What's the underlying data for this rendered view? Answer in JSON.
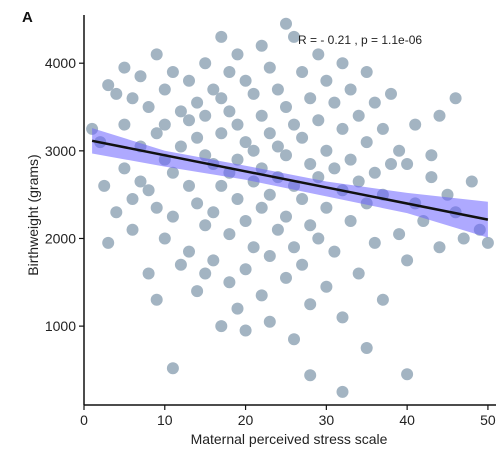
{
  "chart_data": {
    "type": "scatter",
    "panel_label": "A",
    "xlabel": "Maternal perceived stress scale",
    "ylabel": "Birthweight (grams)",
    "annotation": "R = - 0.21 , p = 1.1e-06",
    "xlim": [
      0,
      51
    ],
    "ylim": [
      100,
      4550
    ],
    "x_ticks": [
      0,
      10,
      20,
      30,
      40,
      50
    ],
    "y_ticks": [
      1000,
      2000,
      3000,
      4000
    ],
    "grid": false,
    "colors": {
      "points": "#9eb0bf",
      "fit_line": "#111111",
      "confidence_band": "#6c63ff"
    },
    "regression": {
      "x": [
        1,
        50
      ],
      "y": [
        3115,
        2215
      ]
    },
    "confidence_band": {
      "x": [
        1,
        10,
        20,
        30,
        40,
        50
      ],
      "upper": [
        3260,
        3000,
        2830,
        2650,
        2520,
        2420
      ],
      "lower": [
        2970,
        2820,
        2670,
        2480,
        2290,
        2010
      ]
    },
    "points": [
      {
        "x": 1,
        "y": 3250
      },
      {
        "x": 2,
        "y": 3100
      },
      {
        "x": 2.5,
        "y": 2600
      },
      {
        "x": 3,
        "y": 3750
      },
      {
        "x": 3,
        "y": 1950
      },
      {
        "x": 4,
        "y": 3650
      },
      {
        "x": 4,
        "y": 2300
      },
      {
        "x": 5,
        "y": 3950
      },
      {
        "x": 5,
        "y": 3300
      },
      {
        "x": 5,
        "y": 2800
      },
      {
        "x": 6,
        "y": 3600
      },
      {
        "x": 6,
        "y": 2450
      },
      {
        "x": 6,
        "y": 2100
      },
      {
        "x": 7,
        "y": 3850
      },
      {
        "x": 7,
        "y": 3050
      },
      {
        "x": 7,
        "y": 2650
      },
      {
        "x": 8,
        "y": 3500
      },
      {
        "x": 8,
        "y": 2550
      },
      {
        "x": 8,
        "y": 1600
      },
      {
        "x": 9,
        "y": 4100
      },
      {
        "x": 9,
        "y": 3200
      },
      {
        "x": 9,
        "y": 2350
      },
      {
        "x": 9,
        "y": 1300
      },
      {
        "x": 10,
        "y": 3700
      },
      {
        "x": 10,
        "y": 3300
      },
      {
        "x": 10,
        "y": 2900
      },
      {
        "x": 10,
        "y": 2000
      },
      {
        "x": 11,
        "y": 3900
      },
      {
        "x": 11,
        "y": 2750
      },
      {
        "x": 11,
        "y": 2250
      },
      {
        "x": 11,
        "y": 520
      },
      {
        "x": 12,
        "y": 3450
      },
      {
        "x": 12,
        "y": 3050
      },
      {
        "x": 12,
        "y": 1700
      },
      {
        "x": 13,
        "y": 3800
      },
      {
        "x": 13,
        "y": 3350
      },
      {
        "x": 13,
        "y": 2600
      },
      {
        "x": 13,
        "y": 1850
      },
      {
        "x": 14,
        "y": 3550
      },
      {
        "x": 14,
        "y": 3150
      },
      {
        "x": 14,
        "y": 2400
      },
      {
        "x": 14,
        "y": 1400
      },
      {
        "x": 15,
        "y": 4000
      },
      {
        "x": 15,
        "y": 3400
      },
      {
        "x": 15,
        "y": 2950
      },
      {
        "x": 15,
        "y": 2150
      },
      {
        "x": 15,
        "y": 1600
      },
      {
        "x": 16,
        "y": 3700
      },
      {
        "x": 16,
        "y": 2850
      },
      {
        "x": 16,
        "y": 2300
      },
      {
        "x": 16,
        "y": 1750
      },
      {
        "x": 17,
        "y": 4300
      },
      {
        "x": 17,
        "y": 3600
      },
      {
        "x": 17,
        "y": 3200
      },
      {
        "x": 17,
        "y": 2600
      },
      {
        "x": 17,
        "y": 1000
      },
      {
        "x": 18,
        "y": 3900
      },
      {
        "x": 18,
        "y": 3450
      },
      {
        "x": 18,
        "y": 2750
      },
      {
        "x": 18,
        "y": 2050
      },
      {
        "x": 18,
        "y": 1500
      },
      {
        "x": 19,
        "y": 4100
      },
      {
        "x": 19,
        "y": 3300
      },
      {
        "x": 19,
        "y": 2900
      },
      {
        "x": 19,
        "y": 2450
      },
      {
        "x": 19,
        "y": 1200
      },
      {
        "x": 20,
        "y": 3800
      },
      {
        "x": 20,
        "y": 3100
      },
      {
        "x": 20,
        "y": 2200
      },
      {
        "x": 20,
        "y": 1650
      },
      {
        "x": 20,
        "y": 950
      },
      {
        "x": 21,
        "y": 3650
      },
      {
        "x": 21,
        "y": 3000
      },
      {
        "x": 21,
        "y": 2650
      },
      {
        "x": 21,
        "y": 1900
      },
      {
        "x": 22,
        "y": 4200
      },
      {
        "x": 22,
        "y": 3400
      },
      {
        "x": 22,
        "y": 2800
      },
      {
        "x": 22,
        "y": 2350
      },
      {
        "x": 22,
        "y": 1350
      },
      {
        "x": 23,
        "y": 3950
      },
      {
        "x": 23,
        "y": 3200
      },
      {
        "x": 23,
        "y": 2500
      },
      {
        "x": 23,
        "y": 1800
      },
      {
        "x": 23,
        "y": 1050
      },
      {
        "x": 24,
        "y": 3700
      },
      {
        "x": 24,
        "y": 3050
      },
      {
        "x": 24,
        "y": 2700
      },
      {
        "x": 24,
        "y": 2100
      },
      {
        "x": 25,
        "y": 4450
      },
      {
        "x": 25,
        "y": 3500
      },
      {
        "x": 25,
        "y": 2950
      },
      {
        "x": 25,
        "y": 2250
      },
      {
        "x": 25,
        "y": 1550
      },
      {
        "x": 26,
        "y": 4300
      },
      {
        "x": 26,
        "y": 3300
      },
      {
        "x": 26,
        "y": 2600
      },
      {
        "x": 26,
        "y": 1900
      },
      {
        "x": 26,
        "y": 850
      },
      {
        "x": 27,
        "y": 3900
      },
      {
        "x": 27,
        "y": 3150
      },
      {
        "x": 27,
        "y": 2450
      },
      {
        "x": 27,
        "y": 1700
      },
      {
        "x": 28,
        "y": 3600
      },
      {
        "x": 28,
        "y": 2850
      },
      {
        "x": 28,
        "y": 2150
      },
      {
        "x": 28,
        "y": 1250
      },
      {
        "x": 28,
        "y": 440
      },
      {
        "x": 29,
        "y": 4100
      },
      {
        "x": 29,
        "y": 3350
      },
      {
        "x": 29,
        "y": 2700
      },
      {
        "x": 29,
        "y": 2000
      },
      {
        "x": 30,
        "y": 3800
      },
      {
        "x": 30,
        "y": 3000
      },
      {
        "x": 30,
        "y": 2350
      },
      {
        "x": 30,
        "y": 1450
      },
      {
        "x": 31,
        "y": 3550
      },
      {
        "x": 31,
        "y": 2800
      },
      {
        "x": 31,
        "y": 1850
      },
      {
        "x": 32,
        "y": 4000
      },
      {
        "x": 32,
        "y": 3250
      },
      {
        "x": 32,
        "y": 2550
      },
      {
        "x": 32,
        "y": 1100
      },
      {
        "x": 32,
        "y": 250
      },
      {
        "x": 33,
        "y": 3700
      },
      {
        "x": 33,
        "y": 2900
      },
      {
        "x": 33,
        "y": 2200
      },
      {
        "x": 34,
        "y": 3400
      },
      {
        "x": 34,
        "y": 2650
      },
      {
        "x": 34,
        "y": 1600
      },
      {
        "x": 35,
        "y": 3900
      },
      {
        "x": 35,
        "y": 3100
      },
      {
        "x": 35,
        "y": 2400
      },
      {
        "x": 35,
        "y": 750
      },
      {
        "x": 36,
        "y": 3550
      },
      {
        "x": 36,
        "y": 2750
      },
      {
        "x": 36,
        "y": 1950
      },
      {
        "x": 37,
        "y": 3250
      },
      {
        "x": 37,
        "y": 2500
      },
      {
        "x": 37,
        "y": 1300
      },
      {
        "x": 38,
        "y": 3650
      },
      {
        "x": 38,
        "y": 2850
      },
      {
        "x": 39,
        "y": 3000
      },
      {
        "x": 39,
        "y": 2050
      },
      {
        "x": 40,
        "y": 2850
      },
      {
        "x": 40,
        "y": 1750
      },
      {
        "x": 40,
        "y": 450
      },
      {
        "x": 41,
        "y": 3300
      },
      {
        "x": 41,
        "y": 2400
      },
      {
        "x": 42,
        "y": 2200
      },
      {
        "x": 43,
        "y": 2950
      },
      {
        "x": 43,
        "y": 2700
      },
      {
        "x": 44,
        "y": 3400
      },
      {
        "x": 44,
        "y": 1900
      },
      {
        "x": 45,
        "y": 2500
      },
      {
        "x": 46,
        "y": 3600
      },
      {
        "x": 46,
        "y": 2300
      },
      {
        "x": 47,
        "y": 2000
      },
      {
        "x": 48,
        "y": 2650
      },
      {
        "x": 49,
        "y": 2100
      },
      {
        "x": 50,
        "y": 1950
      }
    ]
  }
}
